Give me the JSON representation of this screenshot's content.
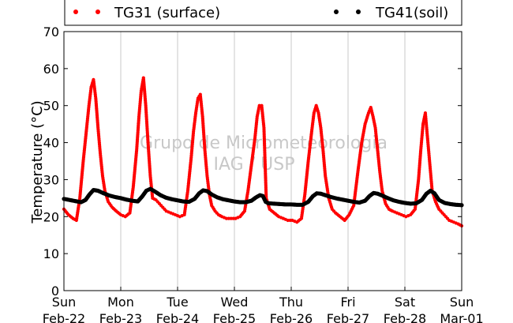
{
  "chart_data": {
    "type": "scatter",
    "ylabel": "Temperature (°C)",
    "ylim": [
      0,
      70
    ],
    "y_ticks": [
      "0",
      "10",
      "20",
      "30",
      "40",
      "50",
      "60",
      "70"
    ],
    "x_range_days": [
      0,
      7
    ],
    "x_tick_labels": [
      {
        "day": "Sun",
        "date": "Feb-22"
      },
      {
        "day": "Mon",
        "date": "Feb-23"
      },
      {
        "day": "Tue",
        "date": "Feb-24"
      },
      {
        "day": "Wed",
        "date": "Feb-25"
      },
      {
        "day": "Thu",
        "date": "Feb-26"
      },
      {
        "day": "Fri",
        "date": "Feb-27"
      },
      {
        "day": "Sat",
        "date": "Feb-28"
      },
      {
        "day": "Sun",
        "date": "Mar-01"
      }
    ],
    "grid": "vertical",
    "legend_position": "top",
    "watermark": [
      "Grupo de Micrometeorologia",
      "IAG / USP"
    ],
    "series": [
      {
        "name": "TG31 (surface)",
        "color": "#ff0000",
        "x": [
          0.0,
          0.08,
          0.16,
          0.22,
          0.28,
          0.34,
          0.4,
          0.44,
          0.48,
          0.52,
          0.56,
          0.6,
          0.64,
          0.68,
          0.72,
          0.78,
          0.85,
          0.92,
          1.0,
          1.08,
          1.16,
          1.22,
          1.28,
          1.32,
          1.36,
          1.4,
          1.44,
          1.48,
          1.52,
          1.56,
          1.62,
          1.68,
          1.74,
          1.8,
          1.88,
          1.96,
          2.04,
          2.12,
          2.18,
          2.24,
          2.28,
          2.32,
          2.36,
          2.4,
          2.44,
          2.48,
          2.52,
          2.56,
          2.6,
          2.66,
          2.72,
          2.78,
          2.86,
          2.94,
          3.02,
          3.1,
          3.18,
          3.24,
          3.3,
          3.36,
          3.4,
          3.44,
          3.48,
          3.52,
          3.56,
          3.62,
          3.7,
          3.78,
          3.86,
          3.94,
          4.02,
          4.1,
          4.18,
          4.24,
          4.3,
          4.36,
          4.4,
          4.44,
          4.48,
          4.52,
          4.56,
          4.6,
          4.66,
          4.72,
          4.78,
          4.86,
          4.94,
          5.02,
          5.1,
          5.18,
          5.24,
          5.3,
          5.36,
          5.4,
          5.44,
          5.48,
          5.52,
          5.56,
          5.6,
          5.66,
          5.72,
          5.78,
          5.86,
          5.94,
          6.02,
          6.1,
          6.18,
          6.24,
          6.28,
          6.32,
          6.36,
          6.4,
          6.44,
          6.48,
          6.54,
          6.6,
          6.66,
          6.72,
          6.78,
          6.86,
          6.94,
          7.0
        ],
        "y": [
          22.0,
          20.5,
          19.5,
          19.0,
          25.0,
          35.0,
          44.0,
          50.0,
          55.0,
          57.0,
          52.0,
          44.0,
          37.0,
          31.0,
          27.0,
          24.0,
          22.5,
          21.5,
          20.5,
          20.0,
          21.0,
          28.0,
          38.0,
          47.0,
          54.0,
          57.5,
          50.0,
          40.0,
          31.0,
          25.0,
          24.5,
          23.5,
          22.5,
          21.5,
          21.0,
          20.5,
          20.0,
          20.5,
          27.0,
          36.0,
          43.0,
          48.0,
          52.0,
          53.0,
          47.0,
          38.0,
          31.0,
          26.0,
          23.0,
          21.5,
          20.5,
          20.0,
          19.5,
          19.5,
          19.5,
          20.0,
          21.5,
          27.0,
          34.0,
          41.0,
          47.0,
          50.0,
          50.0,
          44.0,
          25.0,
          22.0,
          21.0,
          20.0,
          19.5,
          19.0,
          19.0,
          18.5,
          19.5,
          26.0,
          35.0,
          43.0,
          48.0,
          50.0,
          48.0,
          44.0,
          38.0,
          31.0,
          25.0,
          22.0,
          21.0,
          20.0,
          19.0,
          20.5,
          23.0,
          33.0,
          40.0,
          45.0,
          48.0,
          49.5,
          47.0,
          44.0,
          38.0,
          32.0,
          27.0,
          23.5,
          22.0,
          21.5,
          21.0,
          20.5,
          20.0,
          20.5,
          22.0,
          30.0,
          38.0,
          45.0,
          48.0,
          41.0,
          34.0,
          27.0,
          24.0,
          22.0,
          21.0,
          20.0,
          19.0,
          18.5,
          18.0,
          17.5
        ]
      },
      {
        "name": "TG41(soil)",
        "color": "#000000",
        "x": [
          0.0,
          0.1,
          0.2,
          0.3,
          0.38,
          0.45,
          0.52,
          0.6,
          0.7,
          0.8,
          0.9,
          1.0,
          1.1,
          1.2,
          1.3,
          1.38,
          1.45,
          1.52,
          1.6,
          1.7,
          1.8,
          1.9,
          2.0,
          2.1,
          2.2,
          2.3,
          2.38,
          2.45,
          2.52,
          2.6,
          2.7,
          2.8,
          2.9,
          3.0,
          3.1,
          3.2,
          3.3,
          3.38,
          3.45,
          3.5,
          3.55,
          3.6,
          3.7,
          3.8,
          3.9,
          4.0,
          4.1,
          4.2,
          4.3,
          4.38,
          4.45,
          4.52,
          4.6,
          4.7,
          4.8,
          4.9,
          5.0,
          5.1,
          5.2,
          5.3,
          5.38,
          5.45,
          5.52,
          5.6,
          5.7,
          5.8,
          5.9,
          6.0,
          6.1,
          6.2,
          6.3,
          6.38,
          6.45,
          6.52,
          6.6,
          6.7,
          6.8,
          6.9,
          7.0
        ],
        "y": [
          24.8,
          24.5,
          24.2,
          23.9,
          24.5,
          26.0,
          27.2,
          27.0,
          26.3,
          25.7,
          25.3,
          25.0,
          24.6,
          24.3,
          24.1,
          25.5,
          27.0,
          27.5,
          26.8,
          25.8,
          25.1,
          24.7,
          24.4,
          24.1,
          24.0,
          24.8,
          26.3,
          27.1,
          26.9,
          26.0,
          25.2,
          24.7,
          24.4,
          24.1,
          23.9,
          23.9,
          24.3,
          25.2,
          25.8,
          25.6,
          24.0,
          23.6,
          23.5,
          23.4,
          23.3,
          23.3,
          23.2,
          23.2,
          24.0,
          25.5,
          26.3,
          26.2,
          25.8,
          25.3,
          24.9,
          24.6,
          24.3,
          24.0,
          23.8,
          24.3,
          25.6,
          26.4,
          26.2,
          25.7,
          25.0,
          24.4,
          24.0,
          23.7,
          23.5,
          23.6,
          24.5,
          26.2,
          27.0,
          26.3,
          24.5,
          23.7,
          23.4,
          23.2,
          23.1
        ]
      }
    ]
  }
}
